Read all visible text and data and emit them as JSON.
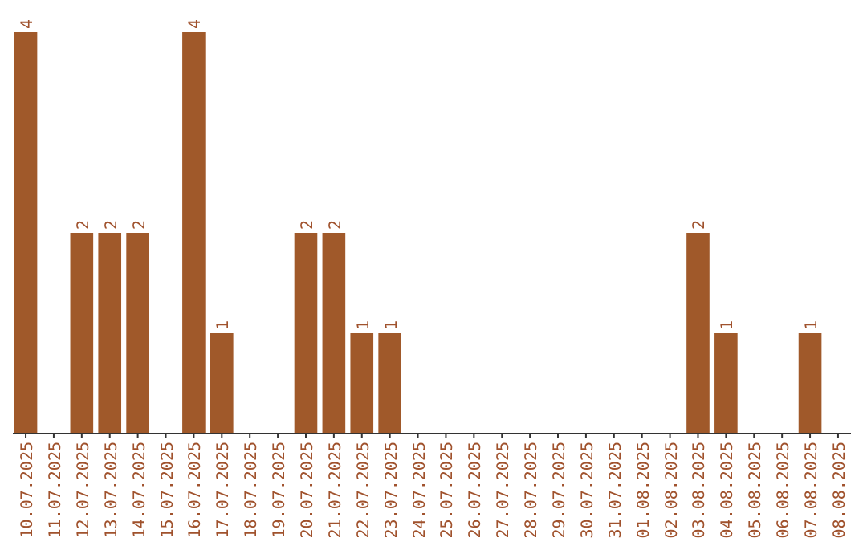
{
  "chart_data": {
    "type": "bar",
    "color": "#a0592a",
    "categories": [
      "10.07.2025",
      "11.07.2025",
      "12.07.2025",
      "13.07.2025",
      "14.07.2025",
      "15.07.2025",
      "16.07.2025",
      "17.07.2025",
      "18.07.2025",
      "19.07.2025",
      "20.07.2025",
      "21.07.2025",
      "22.07.2025",
      "23.07.2025",
      "24.07.2025",
      "25.07.2025",
      "26.07.2025",
      "27.07.2025",
      "28.07.2025",
      "29.07.2025",
      "30.07.2025",
      "31.07.2025",
      "01.08.2025",
      "02.08.2025",
      "03.08.2025",
      "04.08.2025",
      "05.08.2025",
      "06.08.2025",
      "07.08.2025",
      "08.08.2025"
    ],
    "values": [
      4,
      0,
      2,
      2,
      2,
      0,
      4,
      1,
      0,
      0,
      2,
      2,
      1,
      1,
      0,
      0,
      0,
      0,
      0,
      0,
      0,
      0,
      0,
      0,
      2,
      1,
      0,
      0,
      1,
      0
    ],
    "value_labels": [
      "4",
      null,
      "2",
      "2",
      "2",
      null,
      "4",
      "1",
      null,
      null,
      "2",
      "2",
      "1",
      "1",
      null,
      null,
      null,
      null,
      null,
      null,
      null,
      null,
      null,
      null,
      "2",
      "1",
      null,
      null,
      "1",
      null
    ]
  }
}
